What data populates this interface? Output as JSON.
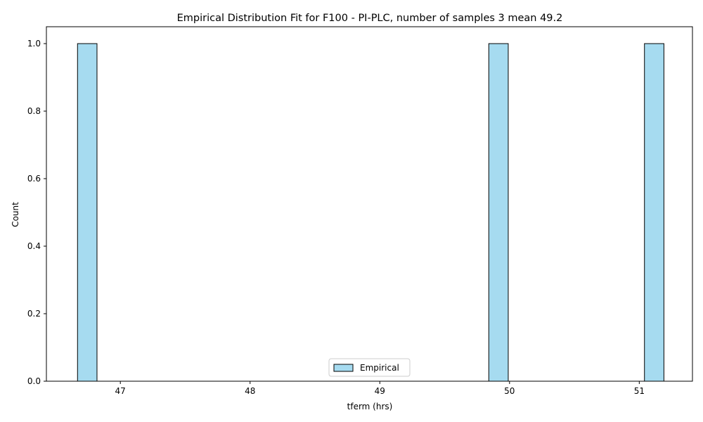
{
  "chart_data": {
    "type": "bar",
    "title": "Empirical Distribution Fit for F100 - PI-PLC, number of samples 3 mean 49.2",
    "xlabel": "tferm (hrs)",
    "ylabel": "Count",
    "xlim": [
      46.43,
      51.41
    ],
    "ylim": [
      0,
      1.05
    ],
    "x_ticks": [
      47,
      48,
      49,
      50,
      51
    ],
    "y_ticks": [
      0.0,
      0.2,
      0.4,
      0.6,
      0.8,
      1.0
    ],
    "x_tick_labels": [
      "47",
      "48",
      "49",
      "50",
      "51"
    ],
    "y_tick_labels": [
      "0.0",
      "0.2",
      "0.4",
      "0.6",
      "0.8",
      "1.0"
    ],
    "bin_width": 0.15,
    "bins": [
      {
        "start": 46.67,
        "count": 1
      },
      {
        "start": 49.84,
        "count": 1
      },
      {
        "start": 51.04,
        "count": 1
      }
    ],
    "legend": {
      "position": "bottom-center",
      "entries": [
        "Empirical"
      ]
    },
    "grid": false,
    "colors": {
      "bar_fill": "#a6dbf0",
      "bar_edge": "#000000"
    }
  }
}
